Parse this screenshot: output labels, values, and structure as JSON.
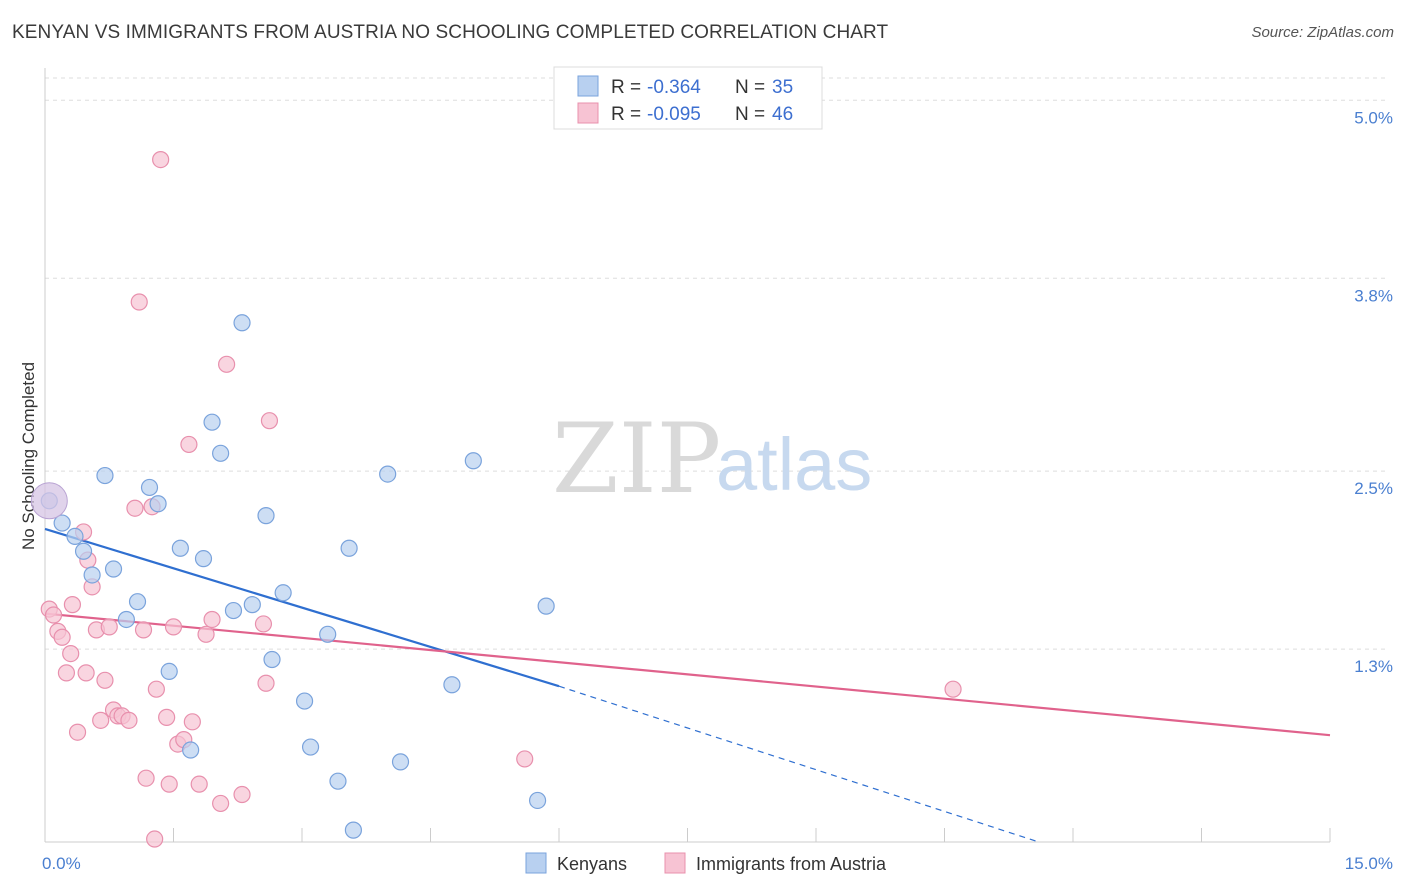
{
  "header": {
    "title": "KENYAN VS IMMIGRANTS FROM AUSTRIA NO SCHOOLING COMPLETED CORRELATION CHART",
    "source": "Source: ZipAtlas.com"
  },
  "watermark": {
    "zip": "ZIP",
    "atlas": "atlas"
  },
  "legend_top": [
    {
      "r_label": "R = ",
      "r_value": "-0.364",
      "n_label": "N = ",
      "n_value": "35"
    },
    {
      "r_label": "R = ",
      "r_value": "-0.095",
      "n_label": "N = ",
      "n_value": "46"
    }
  ],
  "legend_bottom": [
    "Kenyans",
    "Immigrants from Austria"
  ],
  "colors": {
    "kenyans_fill": "#b8d0f0",
    "kenyans_stroke": "#7aa3dc",
    "kenyans_line": "#2f6fd0",
    "austria_fill": "#f7c3d3",
    "austria_stroke": "#e890ad",
    "austria_line": "#e0628c",
    "grid": "#dddddd",
    "tick_text": "#4a7fd0"
  },
  "chart_data": {
    "type": "scatter",
    "title": "KENYAN VS IMMIGRANTS FROM AUSTRIA NO SCHOOLING COMPLETED CORRELATION CHART",
    "xlabel": "",
    "ylabel": "No Schooling Completed",
    "xlim": [
      0,
      15
    ],
    "ylim": [
      0,
      5.15
    ],
    "x_tick_labels": [
      {
        "value": 0,
        "label": "0.0%"
      },
      {
        "value": 15,
        "label": "15.0%"
      }
    ],
    "y_tick_labels": [
      {
        "value": 1.3,
        "label": "1.3%"
      },
      {
        "value": 2.5,
        "label": "2.5%"
      },
      {
        "value": 3.8,
        "label": "3.8%"
      },
      {
        "value": 5.0,
        "label": "5.0%"
      }
    ],
    "grid": true,
    "legend_position": "top-center",
    "series": [
      {
        "name": "Kenyans",
        "r": -0.364,
        "n": 35,
        "points": [
          [
            0.05,
            2.3
          ],
          [
            0.2,
            2.15
          ],
          [
            0.35,
            2.06
          ],
          [
            0.45,
            1.96
          ],
          [
            0.55,
            1.8
          ],
          [
            0.7,
            2.47
          ],
          [
            0.8,
            1.84
          ],
          [
            0.95,
            1.5
          ],
          [
            1.08,
            1.62
          ],
          [
            1.22,
            2.39
          ],
          [
            1.32,
            2.28
          ],
          [
            1.45,
            1.15
          ],
          [
            1.58,
            1.98
          ],
          [
            1.7,
            0.62
          ],
          [
            1.85,
            1.91
          ],
          [
            1.95,
            2.83
          ],
          [
            2.05,
            2.62
          ],
          [
            2.2,
            1.56
          ],
          [
            2.3,
            3.5
          ],
          [
            2.42,
            1.6
          ],
          [
            2.58,
            2.2
          ],
          [
            2.65,
            1.23
          ],
          [
            2.78,
            1.68
          ],
          [
            3.03,
            0.95
          ],
          [
            3.1,
            0.64
          ],
          [
            3.3,
            1.4
          ],
          [
            3.42,
            0.41
          ],
          [
            3.6,
            0.08
          ],
          [
            3.55,
            1.98
          ],
          [
            4.0,
            2.48
          ],
          [
            4.15,
            0.54
          ],
          [
            4.75,
            1.06
          ],
          [
            5.0,
            2.57
          ],
          [
            5.75,
            0.28
          ],
          [
            5.85,
            1.59
          ]
        ],
        "trend": {
          "x": [
            0,
            6
          ],
          "y": [
            2.11,
            1.05
          ]
        },
        "trend_dashed": {
          "x": [
            6,
            11.6
          ],
          "y": [
            1.05,
            0.0
          ]
        }
      },
      {
        "name": "Immigrants from Austria",
        "r": -0.095,
        "n": 46,
        "points": [
          [
            0.05,
            1.57
          ],
          [
            0.1,
            1.53
          ],
          [
            0.15,
            1.42
          ],
          [
            0.2,
            1.38
          ],
          [
            0.25,
            1.14
          ],
          [
            0.3,
            1.27
          ],
          [
            0.32,
            1.6
          ],
          [
            0.38,
            0.74
          ],
          [
            0.45,
            2.09
          ],
          [
            0.48,
            1.14
          ],
          [
            0.5,
            1.9
          ],
          [
            0.55,
            1.72
          ],
          [
            0.6,
            1.43
          ],
          [
            0.65,
            0.82
          ],
          [
            0.7,
            1.09
          ],
          [
            0.75,
            1.45
          ],
          [
            0.8,
            0.89
          ],
          [
            0.85,
            0.85
          ],
          [
            0.9,
            0.85
          ],
          [
            0.98,
            0.82
          ],
          [
            1.05,
            2.25
          ],
          [
            1.1,
            3.64
          ],
          [
            1.15,
            1.43
          ],
          [
            1.18,
            0.43
          ],
          [
            1.25,
            2.26
          ],
          [
            1.3,
            1.03
          ],
          [
            1.35,
            4.6
          ],
          [
            1.42,
            0.84
          ],
          [
            1.45,
            0.39
          ],
          [
            1.5,
            1.45
          ],
          [
            1.55,
            0.66
          ],
          [
            1.62,
            0.69
          ],
          [
            1.68,
            2.68
          ],
          [
            1.72,
            0.81
          ],
          [
            1.8,
            0.39
          ],
          [
            1.88,
            1.4
          ],
          [
            1.95,
            1.5
          ],
          [
            2.05,
            0.26
          ],
          [
            2.12,
            3.22
          ],
          [
            2.3,
            0.32
          ],
          [
            2.55,
            1.47
          ],
          [
            2.58,
            1.07
          ],
          [
            2.62,
            2.84
          ],
          [
            5.6,
            0.56
          ],
          [
            10.6,
            1.03
          ],
          [
            1.28,
            0.02
          ]
        ],
        "trend": {
          "x": [
            0,
            15
          ],
          "y": [
            1.54,
            0.72
          ]
        }
      }
    ]
  }
}
